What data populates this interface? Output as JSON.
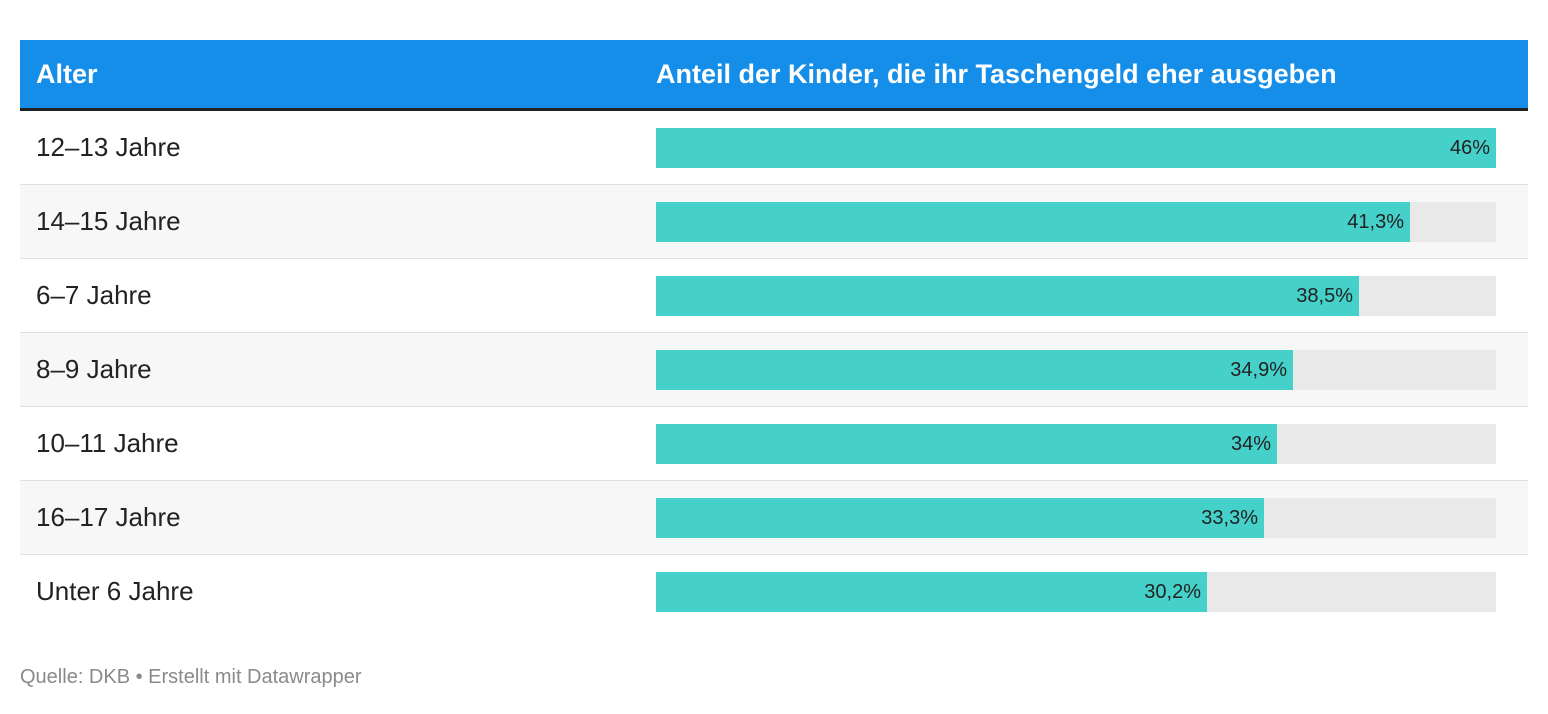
{
  "header": {
    "col_age": "Alter",
    "col_share": "Anteil der Kinder, die ihr Taschengeld eher ausgeben"
  },
  "chart_data": {
    "type": "bar",
    "orientation": "horizontal",
    "xlim": [
      0,
      46
    ],
    "categories": [
      "12–13 Jahre",
      "14–15 Jahre",
      "6–7 Jahre",
      "8–9 Jahre",
      "10–11 Jahre",
      "16–17 Jahre",
      "Unter 6 Jahre"
    ],
    "values": [
      46,
      41.3,
      38.5,
      34.9,
      34,
      33.3,
      30.2
    ],
    "value_labels": [
      "46%",
      "41,3%",
      "38,5%",
      "34,9%",
      "34%",
      "33,3%",
      "30,2%"
    ],
    "colors": {
      "bar": "#45d0c9",
      "track": "#e9e9e9",
      "header": "#148ee8"
    }
  },
  "footer": {
    "source": "Quelle: DKB • Erstellt mit Datawrapper"
  }
}
